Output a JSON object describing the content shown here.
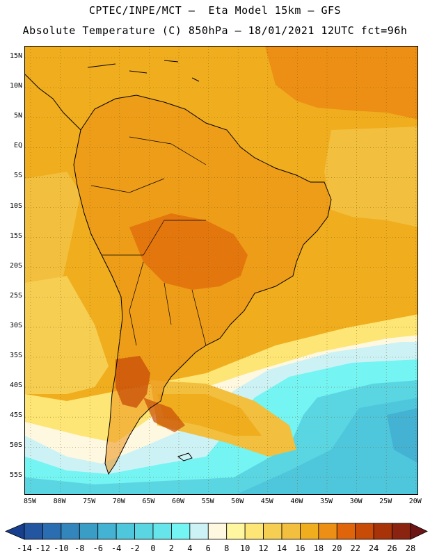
{
  "header": {
    "line1": "CPTEC/INPE/MCT –  Eta Model 15km – GFS",
    "line2": "Absolute Temperature (C) 850hPa – 18/01/2021 12UTC fct=96h"
  },
  "map": {
    "lat_labels": [
      "15N",
      "10N",
      "5N",
      "EQ",
      "5S",
      "10S",
      "15S",
      "20S",
      "25S",
      "30S",
      "35S",
      "40S",
      "45S",
      "50S",
      "55S"
    ],
    "lon_labels": [
      "85W",
      "80W",
      "75W",
      "70W",
      "65W",
      "60W",
      "55W",
      "50W",
      "45W",
      "40W",
      "35W",
      "30W",
      "25W",
      "20W"
    ],
    "ocean_color": "#f0ad1e",
    "land_color": "#f0ad1e"
  },
  "colorbar": {
    "labels": [
      "-14",
      "-12",
      "-10",
      "-8",
      "-6",
      "-4",
      "-2",
      "0",
      "2",
      "4",
      "6",
      "8",
      "10",
      "12",
      "14",
      "16",
      "18",
      "20",
      "22",
      "24",
      "26",
      "28"
    ],
    "colors": [
      "#173f8e",
      "#2355a0",
      "#2a6db0",
      "#3286bc",
      "#3a9dc6",
      "#44b2d2",
      "#4ec6dc",
      "#5ad6e2",
      "#66e6ea",
      "#74f4f2",
      "#ccf2f6",
      "#fef8e0",
      "#fff6a0",
      "#fde675",
      "#f6cf52",
      "#f2bf3e",
      "#f0ad1e",
      "#ec8f14",
      "#e0650a",
      "#c84b07",
      "#a83308",
      "#8a2310",
      "#6e1414"
    ]
  }
}
